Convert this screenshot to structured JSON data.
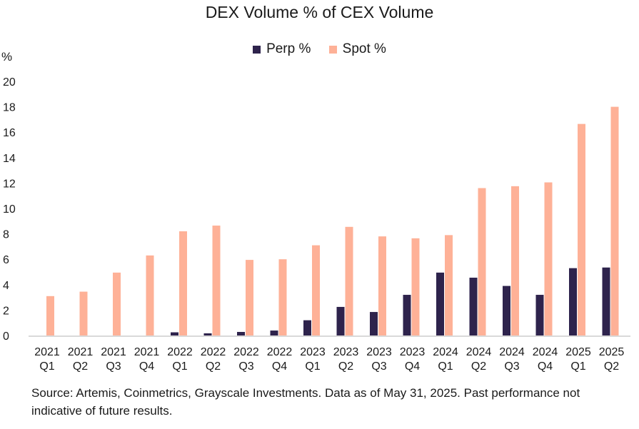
{
  "chart_data": {
    "type": "bar",
    "title": "DEX Volume % of CEX Volume",
    "ylabel": "%",
    "ylim": [
      0,
      20
    ],
    "yticks": [
      0,
      2,
      4,
      6,
      8,
      10,
      12,
      14,
      16,
      18,
      20
    ],
    "grid": false,
    "legend": "top",
    "categories": [
      [
        "2021",
        "Q1"
      ],
      [
        "2021",
        "Q2"
      ],
      [
        "2021",
        "Q3"
      ],
      [
        "2021",
        "Q4"
      ],
      [
        "2022",
        "Q1"
      ],
      [
        "2022",
        "Q2"
      ],
      [
        "2022",
        "Q3"
      ],
      [
        "2022",
        "Q4"
      ],
      [
        "2023",
        "Q1"
      ],
      [
        "2023",
        "Q2"
      ],
      [
        "2023",
        "Q3"
      ],
      [
        "2023",
        "Q4"
      ],
      [
        "2024",
        "Q1"
      ],
      [
        "2024",
        "Q2"
      ],
      [
        "2024",
        "Q3"
      ],
      [
        "2024",
        "Q4"
      ],
      [
        "2025",
        "Q1"
      ],
      [
        "2025",
        "Q2"
      ]
    ],
    "series": [
      {
        "name": "Perp %",
        "color": "#2e234c",
        "values": [
          0,
          0,
          0,
          0,
          0.25,
          0.17,
          0.28,
          0.39,
          1.2,
          2.25,
          1.85,
          3.2,
          4.95,
          4.55,
          3.9,
          3.2,
          5.3,
          5.35
        ]
      },
      {
        "name": "Spot %",
        "color": "#feb197",
        "values": [
          3.1,
          3.45,
          4.95,
          6.3,
          8.2,
          8.65,
          5.95,
          6.0,
          7.1,
          8.55,
          7.8,
          7.65,
          7.9,
          11.6,
          11.75,
          12.05,
          16.65,
          18.0
        ]
      }
    ]
  },
  "source": "Source: Artemis, Coinmetrics, Grayscale Investments. Data as of May 31, 2025. Past performance not indicative of future results."
}
